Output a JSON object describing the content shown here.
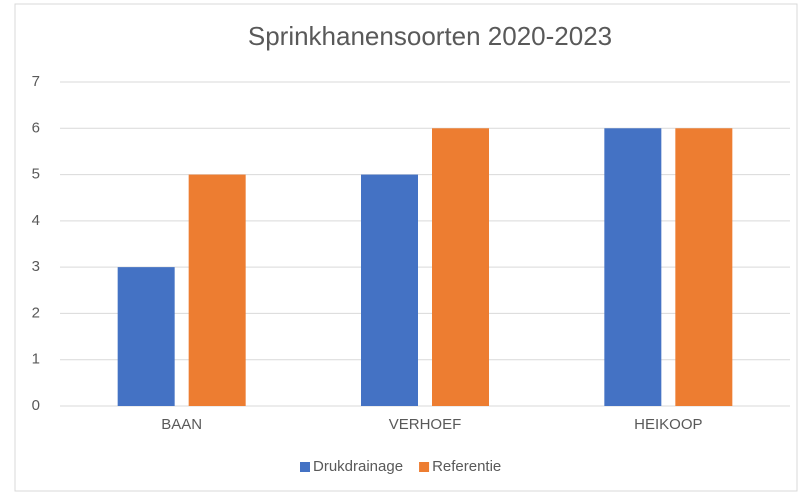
{
  "chart_data": {
    "type": "bar",
    "title": "Sprinkhanensoorten 2020-2023",
    "categories": [
      "BAAN",
      "VERHOEF",
      "HEIKOOP"
    ],
    "series": [
      {
        "name": "Drukdrainage",
        "color": "#4472c4",
        "values": [
          3,
          5,
          6
        ]
      },
      {
        "name": "Referentie",
        "color": "#ed7d31",
        "values": [
          5,
          6,
          6
        ]
      }
    ],
    "ylim": [
      0,
      7
    ],
    "yticks": [
      0,
      1,
      2,
      3,
      4,
      5,
      6,
      7
    ],
    "grid": true,
    "legend": "bottom"
  }
}
